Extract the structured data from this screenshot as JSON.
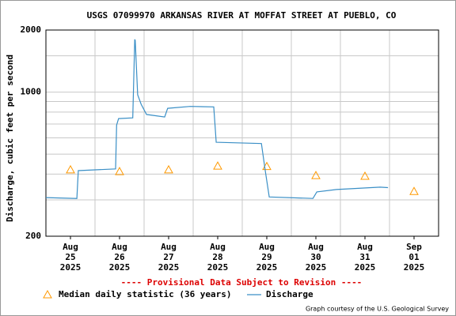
{
  "chart_data": {
    "type": "line",
    "title": "USGS 07099970 ARKANSAS RIVER AT MOFFAT STREET AT PUEBLO, CO",
    "y_label": "Discharge, cubic feet per second",
    "log_y": true,
    "ylim": [
      200,
      2000
    ],
    "yticks": [
      200,
      1000,
      2000
    ],
    "y_minor_ticks": [
      300,
      400,
      500,
      600,
      700,
      800,
      900,
      1500
    ],
    "xlim": [
      0,
      8
    ],
    "xticks": [
      {
        "value": 0.5,
        "label": "Aug 25 2025"
      },
      {
        "value": 1.5,
        "label": "Aug 26 2025"
      },
      {
        "value": 2.5,
        "label": "Aug 27 2025"
      },
      {
        "value": 3.5,
        "label": "Aug 28 2025"
      },
      {
        "value": 4.5,
        "label": "Aug 29 2025"
      },
      {
        "value": 5.5,
        "label": "Aug 30 2025"
      },
      {
        "value": 6.5,
        "label": "Aug 31 2025"
      },
      {
        "value": 7.5,
        "label": "Sep 01 2025"
      }
    ],
    "x_minor_ticks": [
      1,
      2,
      3,
      4,
      5,
      6,
      7
    ],
    "grid": true,
    "series": [
      {
        "name": "Median daily statistic (36 years)",
        "style": "triangle",
        "color": "#ff9900",
        "x": [
          0.5,
          1.5,
          2.5,
          3.5,
          4.5,
          5.5,
          6.5,
          7.5
        ],
        "values": [
          420,
          412,
          420,
          438,
          436,
          394,
          391,
          330
        ]
      },
      {
        "name": "Discharge",
        "style": "line",
        "color": "#3a8fc6",
        "x": [
          0,
          0.63,
          0.66,
          1.42,
          1.44,
          1.48,
          1.77,
          1.81,
          1.82,
          1.87,
          1.94,
          2.05,
          2.42,
          2.48,
          2.94,
          3.42,
          3.47,
          4.39,
          4.47,
          4.55,
          5.44,
          5.52,
          5.92,
          6.81,
          6.97
        ],
        "values": [
          308,
          305,
          416,
          424,
          692,
          744,
          750,
          1800,
          1780,
          970,
          873,
          779,
          757,
          834,
          852,
          848,
          571,
          563,
          415,
          310,
          305,
          328,
          337,
          346,
          344
        ]
      }
    ],
    "note": "---- Provisional Data Subject to Revision ----",
    "credit": "Graph courtesy of the U.S. Geological Survey"
  }
}
